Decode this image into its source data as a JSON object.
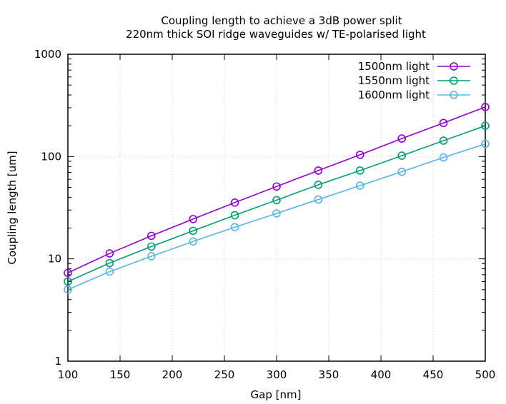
{
  "chart_data": {
    "type": "line",
    "title": "Coupling length to achieve a 3dB power split",
    "subtitle": "220nm thick SOI ridge waveguides w/ TE-polarised light",
    "xlabel": "Gap [nm]",
    "ylabel": "Coupling length [um]",
    "xlim": [
      100,
      500
    ],
    "ylim": [
      1,
      1000
    ],
    "yscale": "log",
    "grid": true,
    "legend_position": "top-right",
    "x": [
      100,
      140,
      180,
      220,
      260,
      300,
      340,
      380,
      420,
      460,
      500
    ],
    "x_ticks": [
      100,
      150,
      200,
      250,
      300,
      350,
      400,
      450,
      500
    ],
    "x_tick_labels": [
      "100",
      "150",
      "200",
      "250",
      "300",
      "350",
      "400",
      "450",
      "500"
    ],
    "y_ticks": [
      1,
      10,
      100,
      1000
    ],
    "y_tick_labels": [
      "1",
      "10",
      "100",
      "1000"
    ],
    "series": [
      {
        "name": "1500nm light",
        "color": "#9400d3",
        "values": [
          7.3,
          11.3,
          16.8,
          24.5,
          35.5,
          51,
          73,
          104,
          150,
          213,
          305
        ]
      },
      {
        "name": "1550nm light",
        "color": "#009e73",
        "values": [
          6.0,
          9.1,
          13.2,
          18.8,
          26.7,
          37.5,
          53,
          73,
          102,
          143,
          200
        ]
      },
      {
        "name": "1600nm light",
        "color": "#56b4e9",
        "values": [
          5.0,
          7.5,
          10.6,
          14.8,
          20.4,
          27.8,
          38,
          52,
          71,
          98,
          133
        ]
      }
    ]
  }
}
